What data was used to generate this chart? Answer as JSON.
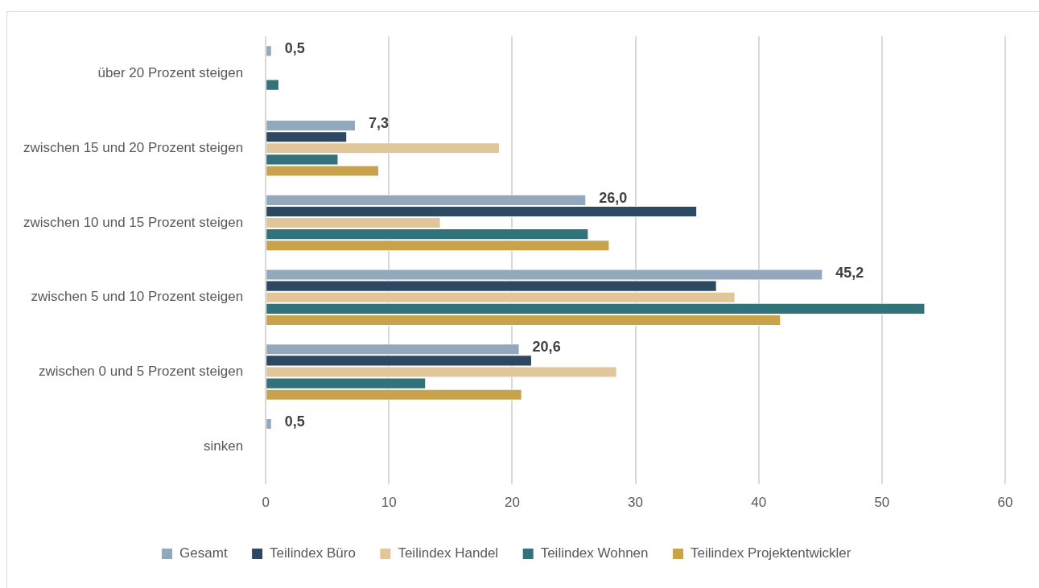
{
  "chart_data": {
    "type": "bar",
    "orientation": "horizontal",
    "categories": [
      "über 20 Prozent steigen",
      "zwischen 15 und 20 Prozent steigen",
      "zwischen 10 und 15 Prozent steigen",
      "zwischen 5 und 10 Prozent steigen",
      "zwischen 0 und 5 Prozent steigen",
      "sinken"
    ],
    "series": [
      {
        "name": "Gesamt",
        "color": "#93a8bc",
        "values": [
          0.5,
          7.3,
          26.0,
          45.2,
          20.6,
          0.5
        ],
        "value_labels": [
          "0,5",
          "7,3",
          "26,0",
          "45,2",
          "20,6",
          "0,5"
        ]
      },
      {
        "name": "Teilindex Büro",
        "color": "#2d4861",
        "values": [
          0,
          6.6,
          35.0,
          36.6,
          21.6,
          0
        ]
      },
      {
        "name": "Teilindex Handel",
        "color": "#e1c699",
        "values": [
          0,
          19.0,
          14.2,
          38.1,
          28.5,
          0
        ]
      },
      {
        "name": "Teilindex Wohnen",
        "color": "#32727a",
        "values": [
          1.1,
          5.9,
          26.2,
          53.5,
          13.0,
          0
        ]
      },
      {
        "name": "Teilindex Projektentwickler",
        "color": "#c9a34c",
        "values": [
          0,
          9.2,
          27.9,
          41.8,
          20.8,
          0
        ]
      }
    ],
    "xlim": [
      0,
      60
    ],
    "xticks": [
      0,
      10,
      20,
      30,
      40,
      50,
      60
    ],
    "grid": "x",
    "legend": "bottom"
  }
}
